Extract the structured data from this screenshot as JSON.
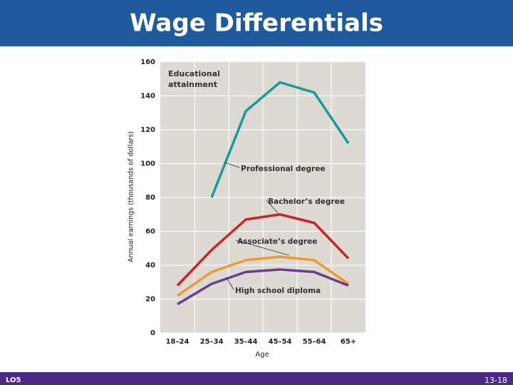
{
  "header": {
    "title": "Wage Differentials"
  },
  "chart_data": {
    "type": "line",
    "legend_title": "Educational attainment",
    "x_label": "Age",
    "y_label": "Annual earnings (thousands of dollars)",
    "categories": [
      "18–24",
      "25–34",
      "35–44",
      "45–54",
      "55–64",
      "65+"
    ],
    "series": [
      {
        "name": "Professional degree",
        "color": "#1a9a9a",
        "values": [
          null,
          80,
          131,
          148,
          142,
          112
        ]
      },
      {
        "name": "Bachelor’s degree",
        "color": "#cc2229",
        "values": [
          28,
          49,
          67,
          70,
          65,
          44
        ]
      },
      {
        "name": "Associate’s degree",
        "color": "#f29a2e",
        "values": [
          22,
          36,
          43,
          45,
          43,
          29
        ]
      },
      {
        "name": "High school diploma",
        "color": "#6a3d8f",
        "values": [
          17,
          29,
          36,
          37.5,
          36,
          28
        ]
      }
    ],
    "ylim": [
      0,
      160
    ],
    "yticks": [
      0,
      20,
      40,
      60,
      80,
      100,
      120,
      140,
      160
    ],
    "grid": true
  },
  "footer": {
    "left": "LO5",
    "right": "13-18"
  }
}
